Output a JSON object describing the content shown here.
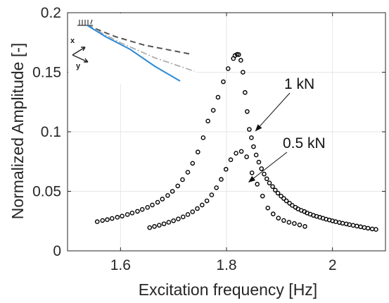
{
  "chart_data": {
    "type": "scatter",
    "title": "",
    "xlabel": "Excitation frequency [Hz]",
    "ylabel": "Normalized Amplitude [-]",
    "xlim": [
      1.5,
      2.1
    ],
    "ylim": [
      0,
      0.2
    ],
    "xticks": [
      1.6,
      1.8,
      2.0
    ],
    "xtick_labels": [
      "1.6",
      "1.8",
      "2"
    ],
    "yticks": [
      0,
      0.05,
      0.1,
      0.15,
      0.2
    ],
    "ytick_labels": [
      "0",
      "0.05",
      "0.1",
      "0.15",
      "0.2"
    ],
    "grid": true,
    "marker": "open-circle",
    "colors": {
      "marker": "#000000",
      "grid": "#e6e6e6",
      "axis": "#262626",
      "inset_solid": "#2e8bd6",
      "inset_dashed": "#555555",
      "inset_dashdot": "#b0b0b0"
    },
    "series": [
      {
        "annotation": "1 kN",
        "x": [
          1.556,
          1.566,
          1.575,
          1.584,
          1.594,
          1.603,
          1.613,
          1.622,
          1.632,
          1.641,
          1.651,
          1.66,
          1.67,
          1.679,
          1.689,
          1.698,
          1.708,
          1.717,
          1.727,
          1.736,
          1.746,
          1.756,
          1.765,
          1.775,
          1.784,
          1.794,
          1.803,
          1.813,
          1.816,
          1.82,
          1.823,
          1.827,
          1.831,
          1.835,
          1.839,
          1.843,
          1.847,
          1.851,
          1.856,
          1.861,
          1.866,
          1.871,
          1.876,
          1.881,
          1.887,
          1.892,
          1.897,
          1.903,
          1.908,
          1.913,
          1.919,
          1.924,
          1.93,
          1.935,
          1.941,
          1.947,
          1.952,
          1.958,
          1.964,
          1.97,
          1.976,
          1.982,
          1.988,
          1.994,
          2.0,
          2.006,
          2.013,
          2.019,
          2.026,
          2.032,
          2.039,
          2.046,
          2.053,
          2.06,
          2.067,
          2.075,
          2.082
        ],
        "y": [
          0.0245,
          0.0255,
          0.0262,
          0.0272,
          0.0282,
          0.0292,
          0.0305,
          0.0318,
          0.0332,
          0.0348,
          0.0365,
          0.0385,
          0.0408,
          0.0435,
          0.0465,
          0.05,
          0.0545,
          0.0598,
          0.066,
          0.0735,
          0.083,
          0.095,
          0.109,
          0.118,
          0.129,
          0.142,
          0.153,
          0.1615,
          0.164,
          0.165,
          0.1648,
          0.16,
          0.15,
          0.133,
          0.117,
          0.102,
          0.095,
          0.0875,
          0.0805,
          0.0745,
          0.069,
          0.0645,
          0.0605,
          0.057,
          0.054,
          0.051,
          0.0485,
          0.046,
          0.044,
          0.042,
          0.04,
          0.0382,
          0.0366,
          0.0352,
          0.034,
          0.033,
          0.0318,
          0.0308,
          0.0298,
          0.029,
          0.0282,
          0.0274,
          0.0266,
          0.0259,
          0.0252,
          0.0245,
          0.0238,
          0.0232,
          0.0226,
          0.022,
          0.0214,
          0.0208,
          0.0202,
          0.0196,
          0.019,
          0.0184,
          0.018
        ]
      },
      {
        "annotation": "0.5 kN",
        "x": [
          1.655,
          1.664,
          1.673,
          1.682,
          1.691,
          1.7,
          1.709,
          1.718,
          1.727,
          1.736,
          1.745,
          1.754,
          1.763,
          1.772,
          1.781,
          1.79,
          1.799,
          1.808,
          1.818,
          1.828,
          1.838,
          1.848,
          1.858,
          1.868,
          1.878,
          1.888,
          1.898,
          1.908,
          1.918,
          1.928,
          1.938,
          1.948
        ],
        "y": [
          0.0195,
          0.0205,
          0.0215,
          0.0227,
          0.024,
          0.0253,
          0.0268,
          0.0285,
          0.0305,
          0.0328,
          0.0355,
          0.0385,
          0.042,
          0.047,
          0.053,
          0.06,
          0.0685,
          0.0765,
          0.082,
          0.0835,
          0.079,
          0.0655,
          0.056,
          0.046,
          0.036,
          0.031,
          0.0275,
          0.0255,
          0.024,
          0.023,
          0.0218,
          0.0205
        ]
      }
    ],
    "annotations": [
      {
        "label": "1 kN",
        "target": [
          1.851,
          0.099
        ]
      },
      {
        "label": "0.5 kN",
        "target": [
          1.838,
          0.056
        ]
      }
    ],
    "inset": {
      "axis_labels": [
        "x",
        "y"
      ]
    }
  }
}
